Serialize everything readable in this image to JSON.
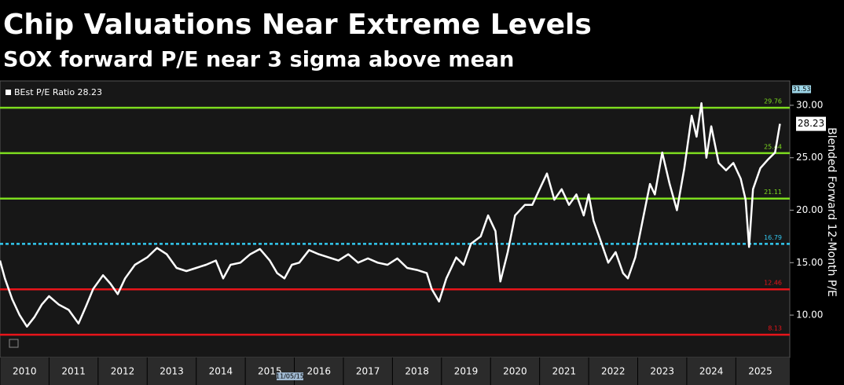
{
  "chart_data": {
    "type": "line",
    "title": "Chip Valuations Near Extreme Levels",
    "subtitle": "SOX forward P/E near 3 sigma above mean",
    "y_axis_label": "Blended Forward 12-Month P/E",
    "annotation": "11/05/15",
    "last_value": 28.23,
    "axis_top_marker": 31.53,
    "xlim": [
      2010,
      2026.1
    ],
    "xticks": [
      2010,
      2011,
      2012,
      2013,
      2014,
      2015,
      2016,
      2017,
      2018,
      2019,
      2020,
      2021,
      2022,
      2023,
      2024,
      2025
    ],
    "ylim": [
      5.96,
      32.32
    ],
    "yticks": [
      {
        "value": 10,
        "label": "10.00"
      },
      {
        "value": 15,
        "label": "15.00"
      },
      {
        "value": 20,
        "label": "20.00"
      },
      {
        "value": 25,
        "label": "25.00"
      },
      {
        "value": 30,
        "label": "30.00"
      }
    ],
    "reference_lines": [
      {
        "value": 29.76,
        "color": "#7ddc1f"
      },
      {
        "value": 25.44,
        "color": "#7ddc1f"
      },
      {
        "value": 21.11,
        "color": "#7ddc1f"
      },
      {
        "value": 16.79,
        "color": "#33c8f0"
      },
      {
        "value": 12.46,
        "color": "#e8141a"
      },
      {
        "value": 8.13,
        "color": "#e8141a"
      }
    ],
    "series": [
      {
        "name": "BEst P/E Ratio 28.23",
        "color": "#ffffff",
        "x": [
          2010.0,
          2010.1,
          2010.25,
          2010.4,
          2010.55,
          2010.7,
          2010.85,
          2011.0,
          2011.2,
          2011.4,
          2011.6,
          2011.75,
          2011.9,
          2012.1,
          2012.25,
          2012.4,
          2012.55,
          2012.75,
          2013.0,
          2013.2,
          2013.4,
          2013.6,
          2013.8,
          2014.0,
          2014.2,
          2014.4,
          2014.55,
          2014.7,
          2014.9,
          2015.1,
          2015.3,
          2015.5,
          2015.65,
          2015.8,
          2015.95,
          2016.1,
          2016.3,
          2016.5,
          2016.7,
          2016.9,
          2017.1,
          2017.3,
          2017.5,
          2017.7,
          2017.9,
          2018.1,
          2018.3,
          2018.5,
          2018.7,
          2018.8,
          2018.95,
          2019.1,
          2019.3,
          2019.45,
          2019.6,
          2019.8,
          2019.95,
          2020.1,
          2020.2,
          2020.35,
          2020.5,
          2020.7,
          2020.85,
          2021.0,
          2021.15,
          2021.3,
          2021.45,
          2021.6,
          2021.75,
          2021.9,
          2022.0,
          2022.1,
          2022.25,
          2022.4,
          2022.55,
          2022.7,
          2022.8,
          2022.95,
          2023.1,
          2023.25,
          2023.35,
          2023.5,
          2023.65,
          2023.8,
          2023.95,
          2024.1,
          2024.2,
          2024.3,
          2024.4,
          2024.5,
          2024.65,
          2024.8,
          2024.95,
          2025.1,
          2025.2,
          2025.27,
          2025.35,
          2025.5,
          2025.65,
          2025.8,
          2025.9
        ],
        "values": [
          15.2,
          13.5,
          11.5,
          10.0,
          8.9,
          9.8,
          11.0,
          11.8,
          11.0,
          10.5,
          9.2,
          10.8,
          12.5,
          13.8,
          13.0,
          12.0,
          13.5,
          14.8,
          15.5,
          16.4,
          15.8,
          14.5,
          14.2,
          14.5,
          14.8,
          15.2,
          13.5,
          14.8,
          15.0,
          15.8,
          16.3,
          15.2,
          14.0,
          13.5,
          14.8,
          15.0,
          16.2,
          15.8,
          15.5,
          15.2,
          15.8,
          15.0,
          15.4,
          15.0,
          14.8,
          15.4,
          14.5,
          14.3,
          14.0,
          12.5,
          11.3,
          13.5,
          15.5,
          14.8,
          16.8,
          17.5,
          19.5,
          18.0,
          13.2,
          16.0,
          19.5,
          20.5,
          20.5,
          22.0,
          23.5,
          21.0,
          22.0,
          20.5,
          21.5,
          19.5,
          21.5,
          19.0,
          17.0,
          15.0,
          16.0,
          14.0,
          13.5,
          15.5,
          19.0,
          22.5,
          21.5,
          25.5,
          22.5,
          20.0,
          24.0,
          29.0,
          27.0,
          30.2,
          25.0,
          28.0,
          24.5,
          23.8,
          24.5,
          23.0,
          21.0,
          16.5,
          22.0,
          24.0,
          24.8,
          25.5,
          28.23
        ]
      }
    ]
  }
}
